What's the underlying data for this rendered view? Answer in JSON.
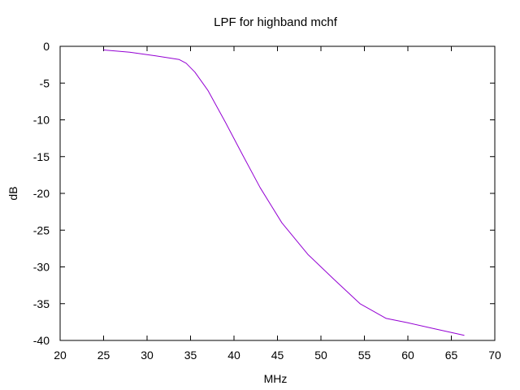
{
  "chart_data": {
    "type": "line",
    "title": "LPF for highband mchf",
    "xlabel": "MHz",
    "ylabel": "dB",
    "xlim": [
      20,
      70
    ],
    "ylim": [
      -40,
      0
    ],
    "xticks": [
      20,
      25,
      30,
      35,
      40,
      45,
      50,
      55,
      60,
      65,
      70
    ],
    "yticks": [
      0,
      -5,
      -10,
      -15,
      -20,
      -25,
      -30,
      -35,
      -40
    ],
    "xtick_labels": [
      "20",
      "25",
      "30",
      "35",
      "40",
      "45",
      "50",
      "55",
      "60",
      "65",
      "70"
    ],
    "ytick_labels": [
      "0",
      "-5",
      "-10",
      "-15",
      "-20",
      "-25",
      "-30",
      "-35",
      "-40"
    ],
    "grid": false,
    "legend": false,
    "series": [
      {
        "color": "#9400d3",
        "x": [
          25,
          28,
          31,
          33.7,
          34.5,
          35.5,
          37,
          39,
          41,
          43,
          45.5,
          48.5,
          51.5,
          54.5,
          57.5,
          60,
          63,
          66.5
        ],
        "y": [
          -0.5,
          -0.8,
          -1.3,
          -1.8,
          -2.3,
          -3.5,
          -6.0,
          -10.3,
          -14.8,
          -19.2,
          -24.0,
          -28.3,
          -31.7,
          -35.0,
          -37.0,
          -37.6,
          -38.4,
          -39.3
        ]
      }
    ]
  }
}
